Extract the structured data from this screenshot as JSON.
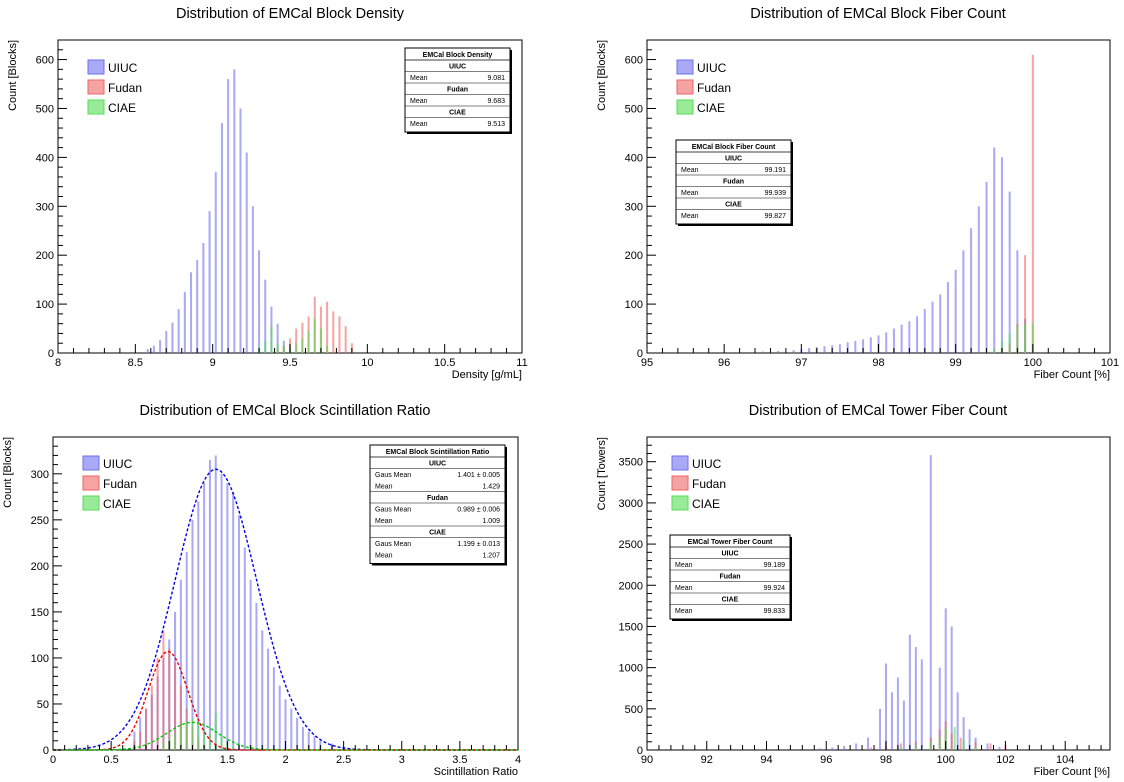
{
  "chart_data": [
    {
      "type": "histogram",
      "title": "Distribution of EMCal Block Density",
      "xlabel": "Density [g/mL]",
      "ylabel": "Count [Blocks]",
      "xlim": [
        8,
        11
      ],
      "ylim": [
        0,
        640
      ],
      "xticks": [
        8,
        8.5,
        9,
        9.5,
        10,
        10.5,
        11
      ],
      "xtick_labels": [
        "8",
        "8.5",
        "9",
        "9.5",
        "10",
        "10.5",
        "11"
      ],
      "yticks": [
        0,
        100,
        200,
        300,
        400,
        500,
        600
      ],
      "legend": [
        "UIUC",
        "Fudan",
        "CIAE"
      ],
      "stats": {
        "title": "EMCal Block Density",
        "rows": [
          {
            "header": "UIUC"
          },
          {
            "label": "Mean",
            "value": "9.081"
          },
          {
            "header": "Fudan"
          },
          {
            "label": "Mean",
            "value": "9.683"
          },
          {
            "header": "CIAE"
          },
          {
            "label": "Mean",
            "value": "9.513"
          }
        ]
      },
      "series": [
        {
          "name": "UIUC",
          "color": "#7070ee",
          "x": [
            8.58,
            8.62,
            8.66,
            8.7,
            8.74,
            8.78,
            8.82,
            8.86,
            8.9,
            8.94,
            8.98,
            9.02,
            9.06,
            9.1,
            9.14,
            9.18,
            9.22,
            9.26,
            9.3,
            9.34,
            9.38,
            9.42,
            9.46,
            9.5
          ],
          "values": [
            8,
            15,
            26,
            45,
            62,
            90,
            125,
            165,
            190,
            225,
            290,
            370,
            470,
            560,
            580,
            500,
            410,
            300,
            210,
            150,
            95,
            60,
            25,
            10
          ]
        },
        {
          "name": "Fudan",
          "color": "#ee6666",
          "x": [
            9.42,
            9.46,
            9.5,
            9.54,
            9.58,
            9.62,
            9.66,
            9.7,
            9.74,
            9.78,
            9.82,
            9.86,
            9.9
          ],
          "values": [
            8,
            15,
            30,
            50,
            62,
            75,
            115,
            95,
            105,
            85,
            75,
            55,
            20
          ]
        },
        {
          "name": "CIAE",
          "color": "#55dd55",
          "x": [
            9.3,
            9.34,
            9.38,
            9.42,
            9.46,
            9.5,
            9.54,
            9.58,
            9.62,
            9.66,
            9.7,
            9.74
          ],
          "values": [
            10,
            25,
            55,
            20,
            15,
            10,
            20,
            30,
            45,
            70,
            50,
            15
          ]
        }
      ]
    },
    {
      "type": "histogram",
      "title": "Distribution of EMCal Block Fiber Count",
      "xlabel": "Fiber Count [%]",
      "ylabel": "Count [Blocks]",
      "xlim": [
        95,
        101
      ],
      "ylim": [
        0,
        640
      ],
      "xticks": [
        95,
        96,
        97,
        98,
        99,
        100,
        101
      ],
      "xtick_labels": [
        "95",
        "96",
        "97",
        "98",
        "99",
        "100",
        "101"
      ],
      "yticks": [
        0,
        100,
        200,
        300,
        400,
        500,
        600
      ],
      "legend": [
        "UIUC",
        "Fudan",
        "CIAE"
      ],
      "stats": {
        "title": "EMCal Block Fiber Count",
        "rows": [
          {
            "header": "UIUC"
          },
          {
            "label": "Mean",
            "value": "99.191"
          },
          {
            "header": "Fudan"
          },
          {
            "label": "Mean",
            "value": "99.939"
          },
          {
            "header": "CIAE"
          },
          {
            "label": "Mean",
            "value": "99.827"
          }
        ]
      },
      "series": [
        {
          "name": "UIUC",
          "color": "#7070ee",
          "x": [
            96.5,
            96.7,
            96.9,
            97.0,
            97.1,
            97.2,
            97.3,
            97.4,
            97.5,
            97.6,
            97.7,
            97.8,
            97.9,
            98.0,
            98.1,
            98.2,
            98.3,
            98.4,
            98.5,
            98.6,
            98.7,
            98.8,
            98.9,
            99.0,
            99.1,
            99.2,
            99.3,
            99.4,
            99.5,
            99.6,
            99.7,
            99.8,
            99.9
          ],
          "values": [
            3,
            4,
            6,
            8,
            10,
            12,
            14,
            16,
            18,
            22,
            25,
            28,
            32,
            36,
            42,
            50,
            58,
            65,
            75,
            90,
            105,
            120,
            145,
            170,
            210,
            255,
            300,
            350,
            420,
            400,
            330,
            210,
            70
          ]
        },
        {
          "name": "Fudan",
          "color": "#ee6666",
          "x": [
            99.6,
            99.7,
            99.8,
            99.9,
            100.0
          ],
          "values": [
            10,
            20,
            60,
            200,
            610
          ]
        },
        {
          "name": "CIAE",
          "color": "#55dd55",
          "x": [
            99.5,
            99.6,
            99.7,
            99.8,
            99.9,
            100.0
          ],
          "values": [
            10,
            25,
            40,
            55,
            60,
            60
          ]
        }
      ]
    },
    {
      "type": "histogram",
      "title": "Distribution of EMCal Block Scintillation Ratio",
      "xlabel": "Scintillation Ratio",
      "ylabel": "Count [Blocks]",
      "xlim": [
        0,
        4
      ],
      "ylim": [
        0,
        340
      ],
      "xticks": [
        0,
        0.5,
        1,
        1.5,
        2,
        2.5,
        3,
        3.5,
        4
      ],
      "xtick_labels": [
        "0",
        "0.5",
        "1",
        "1.5",
        "2",
        "2.5",
        "3",
        "3.5",
        "4"
      ],
      "yticks": [
        0,
        50,
        100,
        150,
        200,
        250,
        300
      ],
      "legend": [
        "UIUC",
        "Fudan",
        "CIAE"
      ],
      "fits": [
        {
          "series": "UIUC",
          "color": "#0000ee",
          "amplitude": 305,
          "mean": 1.401,
          "sigma": 0.35
        },
        {
          "series": "Fudan",
          "color": "#ee0000",
          "amplitude": 107,
          "mean": 0.989,
          "sigma": 0.17
        },
        {
          "series": "CIAE",
          "color": "#00cc00",
          "amplitude": 30,
          "mean": 1.199,
          "sigma": 0.22
        }
      ],
      "stats": {
        "title": "EMCal Block Scintillation Ratio",
        "rows": [
          {
            "header": "UIUC"
          },
          {
            "label": "Gaus Mean",
            "value": "1.401 ± 0.005"
          },
          {
            "label": "Mean",
            "value": "1.429"
          },
          {
            "header": "Fudan"
          },
          {
            "label": "Gaus Mean",
            "value": "0.989 ± 0.006"
          },
          {
            "label": "Mean",
            "value": "1.009"
          },
          {
            "header": "CIAE"
          },
          {
            "label": "Gaus Mean",
            "value": "1.199 ± 0.013"
          },
          {
            "label": "Mean",
            "value": "1.207"
          }
        ]
      },
      "series": [
        {
          "name": "UIUC",
          "color": "#7070ee",
          "x": [
            0.7,
            0.75,
            0.8,
            0.85,
            0.9,
            0.95,
            1.0,
            1.05,
            1.1,
            1.15,
            1.2,
            1.25,
            1.3,
            1.35,
            1.4,
            1.45,
            1.5,
            1.55,
            1.6,
            1.65,
            1.7,
            1.75,
            1.8,
            1.85,
            1.9,
            1.95,
            2.0,
            2.05,
            2.1,
            2.15,
            2.2,
            2.25,
            2.3,
            2.4,
            2.5
          ],
          "values": [
            20,
            35,
            45,
            60,
            80,
            100,
            120,
            150,
            185,
            215,
            250,
            270,
            290,
            315,
            320,
            300,
            290,
            280,
            255,
            220,
            185,
            160,
            130,
            110,
            90,
            70,
            55,
            45,
            35,
            25,
            20,
            15,
            10,
            7,
            4
          ]
        },
        {
          "name": "Fudan",
          "color": "#ee6666",
          "x": [
            0.7,
            0.75,
            0.8,
            0.85,
            0.9,
            0.95,
            1.0,
            1.05,
            1.1,
            1.15,
            1.2,
            1.25,
            1.3
          ],
          "values": [
            10,
            20,
            45,
            70,
            100,
            130,
            110,
            95,
            70,
            45,
            25,
            12,
            5
          ]
        },
        {
          "name": "CIAE",
          "color": "#55dd55",
          "x": [
            0.95,
            1.0,
            1.05,
            1.1,
            1.15,
            1.2,
            1.25,
            1.3,
            1.35,
            1.4,
            1.45,
            1.5,
            1.55
          ],
          "values": [
            8,
            12,
            18,
            25,
            30,
            35,
            28,
            22,
            18,
            40,
            15,
            8,
            4
          ]
        }
      ]
    },
    {
      "type": "histogram",
      "title": "Distribution of EMCal Tower Fiber Count",
      "xlabel": "Fiber Count [%]",
      "ylabel": "Count [Towers]",
      "xlim": [
        90,
        105.5
      ],
      "ylim": [
        0,
        3800
      ],
      "xticks": [
        90,
        92,
        94,
        96,
        98,
        100,
        102,
        104
      ],
      "xtick_labels": [
        "90",
        "92",
        "94",
        "96",
        "98",
        "100",
        "102",
        "104"
      ],
      "yticks": [
        0,
        500,
        1000,
        1500,
        2000,
        2500,
        3000,
        3500
      ],
      "legend": [
        "UIUC",
        "Fudan",
        "CIAE"
      ],
      "stats": {
        "title": "EMCal Tower Fiber Count",
        "rows": [
          {
            "header": "UIUC"
          },
          {
            "label": "Mean",
            "value": "99.189"
          },
          {
            "header": "Fudan"
          },
          {
            "label": "Mean",
            "value": "99.924"
          },
          {
            "header": "CIAE"
          },
          {
            "label": "Mean",
            "value": "99.833"
          }
        ]
      },
      "series": [
        {
          "name": "UIUC",
          "color": "#7070ee",
          "x": [
            95.8,
            96.2,
            96.6,
            97.0,
            97.4,
            97.8,
            98.0,
            98.2,
            98.4,
            98.6,
            98.8,
            99.0,
            99.2,
            99.5,
            99.8,
            100.0,
            100.2,
            100.4,
            100.6,
            100.8,
            101.0,
            101.4,
            101.8
          ],
          "values": [
            20,
            30,
            50,
            80,
            150,
            500,
            1050,
            700,
            880,
            600,
            1400,
            1250,
            1100,
            3580,
            1000,
            1720,
            1500,
            700,
            400,
            250,
            150,
            80,
            40
          ]
        },
        {
          "name": "Fudan",
          "color": "#ee6666",
          "x": [
            97.5,
            98.0,
            98.5,
            99.0,
            99.5,
            99.8,
            100.0,
            100.2,
            100.5,
            101.0,
            101.5,
            102.0
          ],
          "values": [
            30,
            60,
            80,
            100,
            150,
            250,
            350,
            200,
            150,
            100,
            80,
            60
          ]
        },
        {
          "name": "CIAE",
          "color": "#55dd55",
          "x": [
            98.5,
            99.0,
            99.5,
            99.8,
            100.0,
            100.3,
            100.6,
            101.0
          ],
          "values": [
            30,
            60,
            100,
            150,
            260,
            280,
            120,
            40
          ]
        }
      ]
    }
  ]
}
